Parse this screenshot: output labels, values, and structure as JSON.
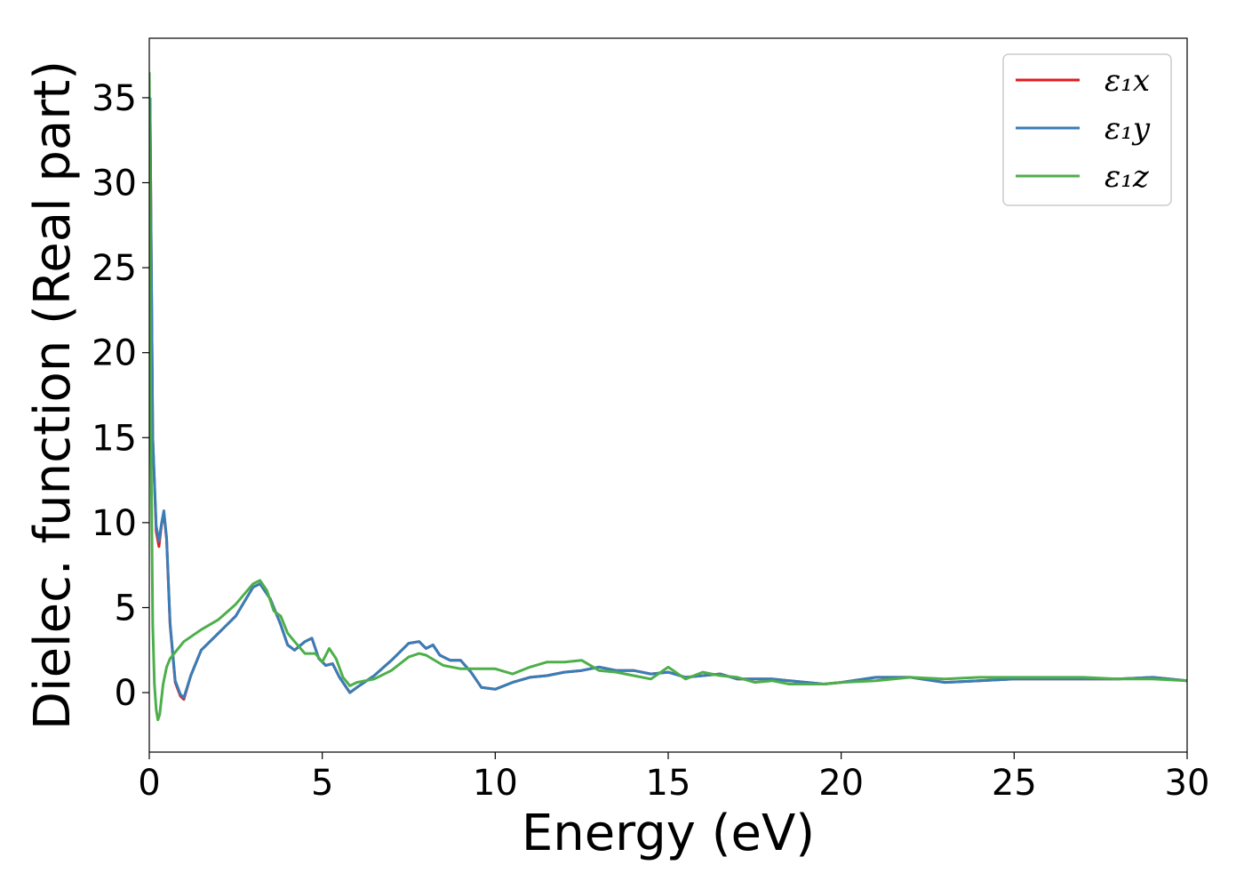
{
  "chart_data": {
    "type": "line",
    "title": "",
    "xlabel": "Energy (eV)",
    "ylabel": "Dielec. function (Real part)",
    "xlim": [
      0,
      30
    ],
    "ylim": [
      -3.5,
      38.5
    ],
    "xticks": [
      "0",
      "5",
      "10",
      "15",
      "20",
      "25",
      "30"
    ],
    "yticks": [
      "0",
      "5",
      "10",
      "15",
      "20",
      "25",
      "30",
      "35"
    ],
    "grid": false,
    "legend_position": "top-right",
    "series": [
      {
        "name": "ε₁x",
        "color": "#e41a1c",
        "x": [
          0.02,
          0.1,
          0.2,
          0.28,
          0.35,
          0.42,
          0.5,
          0.6,
          0.75,
          0.9,
          1.0,
          1.2,
          1.5,
          2.0,
          2.5,
          3.0,
          3.2,
          3.5,
          3.8,
          4.0,
          4.2,
          4.5,
          4.7,
          4.9,
          5.1,
          5.3,
          5.5,
          5.8,
          6.0,
          6.5,
          7.0,
          7.5,
          7.8,
          8.0,
          8.2,
          8.4,
          8.7,
          9.0,
          9.3,
          9.6,
          10.0,
          10.5,
          11.0,
          11.5,
          12.0,
          12.5,
          13.0,
          13.5,
          14.0,
          14.5,
          15.0,
          15.5,
          16.0,
          16.5,
          17.0,
          17.5,
          18.0,
          18.5,
          19.0,
          19.5,
          20.0,
          21.0,
          22.0,
          23.0,
          24.0,
          25.0,
          26.0,
          27.0,
          28.0,
          29.0,
          30.0
        ],
        "y": [
          35,
          15,
          9.5,
          8.6,
          9.8,
          10.6,
          9.0,
          4.0,
          0.6,
          -0.2,
          -0.4,
          1.0,
          2.5,
          3.5,
          4.5,
          6.2,
          6.4,
          5.5,
          4.0,
          2.8,
          2.5,
          3.0,
          3.2,
          2.0,
          1.6,
          1.7,
          0.9,
          0.0,
          0.3,
          1.0,
          1.9,
          2.9,
          3.0,
          2.6,
          2.8,
          2.2,
          1.9,
          1.9,
          1.2,
          0.3,
          0.2,
          0.6,
          0.9,
          1.0,
          1.2,
          1.3,
          1.5,
          1.3,
          1.3,
          1.1,
          1.2,
          0.9,
          1.0,
          1.1,
          0.8,
          0.8,
          0.8,
          0.7,
          0.6,
          0.5,
          0.6,
          0.9,
          0.9,
          0.6,
          0.7,
          0.8,
          0.8,
          0.8,
          0.8,
          0.9,
          0.7
        ]
      },
      {
        "name": "ε₁y",
        "color": "#377eb8",
        "x": [
          0.02,
          0.1,
          0.2,
          0.28,
          0.35,
          0.42,
          0.5,
          0.6,
          0.75,
          0.9,
          1.0,
          1.2,
          1.5,
          2.0,
          2.5,
          3.0,
          3.2,
          3.5,
          3.8,
          4.0,
          4.2,
          4.5,
          4.7,
          4.9,
          5.1,
          5.3,
          5.5,
          5.8,
          6.0,
          6.5,
          7.0,
          7.5,
          7.8,
          8.0,
          8.2,
          8.4,
          8.7,
          9.0,
          9.3,
          9.6,
          10.0,
          10.5,
          11.0,
          11.5,
          12.0,
          12.5,
          13.0,
          13.5,
          14.0,
          14.5,
          15.0,
          15.5,
          16.0,
          16.5,
          17.0,
          17.5,
          18.0,
          18.5,
          19.0,
          19.5,
          20.0,
          21.0,
          22.0,
          23.0,
          24.0,
          25.0,
          26.0,
          27.0,
          28.0,
          29.0,
          30.0
        ],
        "y": [
          35,
          15,
          9.8,
          8.9,
          9.9,
          10.7,
          9.1,
          4.1,
          0.7,
          -0.1,
          -0.3,
          1.0,
          2.5,
          3.5,
          4.5,
          6.2,
          6.4,
          5.5,
          4.0,
          2.8,
          2.5,
          3.0,
          3.2,
          2.0,
          1.6,
          1.7,
          0.9,
          0.0,
          0.3,
          1.0,
          1.9,
          2.9,
          3.0,
          2.6,
          2.8,
          2.2,
          1.9,
          1.9,
          1.2,
          0.3,
          0.2,
          0.6,
          0.9,
          1.0,
          1.2,
          1.3,
          1.5,
          1.3,
          1.3,
          1.1,
          1.2,
          0.9,
          1.0,
          1.1,
          0.8,
          0.8,
          0.8,
          0.7,
          0.6,
          0.5,
          0.6,
          0.9,
          0.9,
          0.6,
          0.7,
          0.8,
          0.8,
          0.8,
          0.8,
          0.9,
          0.7
        ]
      },
      {
        "name": "ε₁z",
        "color": "#4daf4a",
        "x": [
          0.0,
          0.05,
          0.1,
          0.15,
          0.2,
          0.25,
          0.3,
          0.4,
          0.5,
          0.6,
          0.8,
          1.0,
          1.5,
          2.0,
          2.5,
          3.0,
          3.2,
          3.4,
          3.6,
          3.8,
          4.0,
          4.2,
          4.5,
          4.8,
          5.0,
          5.2,
          5.4,
          5.6,
          5.8,
          6.0,
          6.5,
          7.0,
          7.5,
          7.8,
          8.0,
          8.5,
          9.0,
          9.5,
          10.0,
          10.5,
          11.0,
          11.5,
          12.0,
          12.5,
          13.0,
          13.5,
          14.0,
          14.5,
          15.0,
          15.5,
          16.0,
          16.5,
          17.0,
          17.5,
          18.0,
          18.5,
          19.0,
          19.5,
          20.0,
          21.0,
          22.0,
          23.0,
          24.0,
          25.0,
          26.0,
          27.0,
          28.0,
          29.0,
          30.0
        ],
        "y": [
          36.5,
          15,
          4,
          0.5,
          -1.0,
          -1.6,
          -1.3,
          0.5,
          1.5,
          2.0,
          2.5,
          3.0,
          3.7,
          4.3,
          5.2,
          6.4,
          6.6,
          6.0,
          4.8,
          4.5,
          3.5,
          3.0,
          2.3,
          2.3,
          1.8,
          2.6,
          2.0,
          0.9,
          0.4,
          0.6,
          0.8,
          1.3,
          2.1,
          2.3,
          2.2,
          1.6,
          1.4,
          1.4,
          1.4,
          1.1,
          1.5,
          1.8,
          1.8,
          1.9,
          1.3,
          1.2,
          1.0,
          0.8,
          1.5,
          0.8,
          1.2,
          1.0,
          0.9,
          0.6,
          0.7,
          0.5,
          0.5,
          0.5,
          0.6,
          0.7,
          0.9,
          0.8,
          0.9,
          0.9,
          0.9,
          0.9,
          0.8,
          0.8,
          0.7
        ]
      }
    ]
  }
}
